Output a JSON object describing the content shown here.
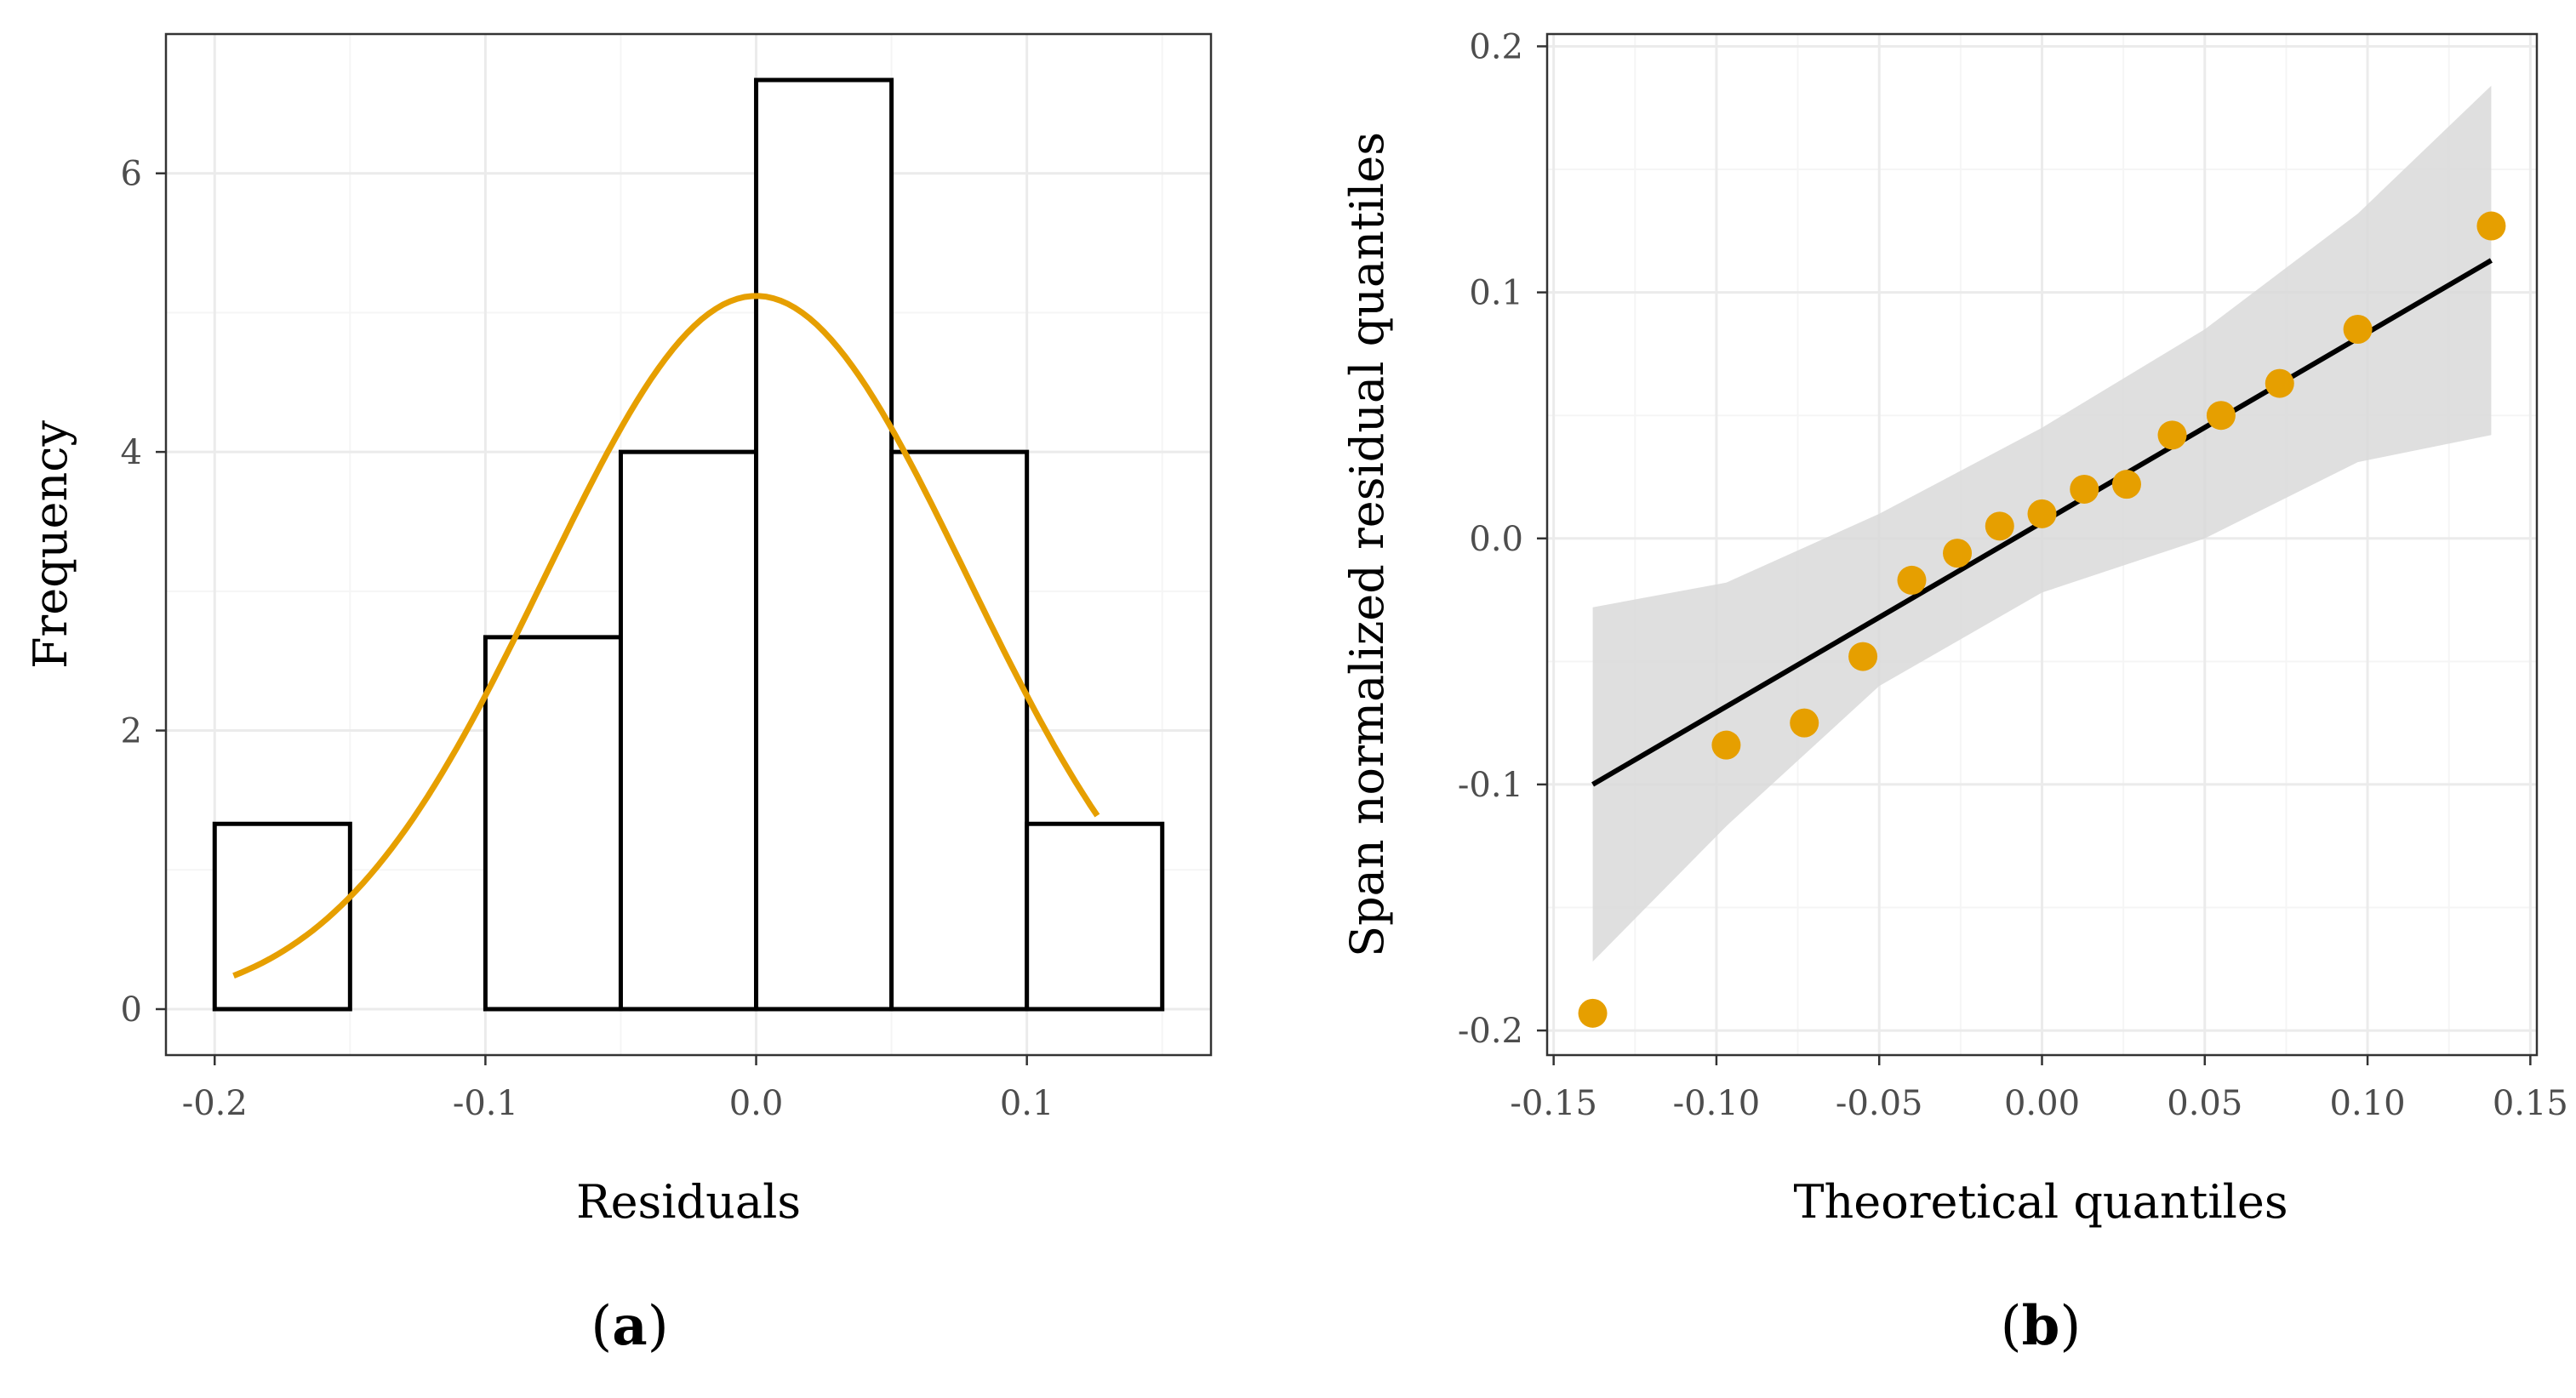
{
  "colors": {
    "accent": "#E69F00",
    "bar_stroke": "#000000",
    "band_fill": "#D9D9D9",
    "grid_major": "#EBEBEB",
    "grid_minor": "#F5F5F5",
    "panel_border": "#333333"
  },
  "chart_data": [
    {
      "id": "a",
      "type": "bar",
      "panel_label": {
        "open": "(",
        "letter": "a",
        "close": ")"
      },
      "xlabel": "Residuals",
      "ylabel": "Frequency",
      "xlim": [
        -0.218,
        0.168
      ],
      "ylim": [
        -0.33,
        7.0
      ],
      "x_ticks": [
        {
          "value": -0.2,
          "label": "-0.2"
        },
        {
          "value": -0.1,
          "label": "-0.1"
        },
        {
          "value": 0.0,
          "label": "0.0"
        },
        {
          "value": 0.1,
          "label": "0.1"
        }
      ],
      "y_ticks": [
        {
          "value": 0,
          "label": "0"
        },
        {
          "value": 2,
          "label": "2"
        },
        {
          "value": 4,
          "label": "4"
        },
        {
          "value": 6,
          "label": "6"
        }
      ],
      "bins": [
        {
          "from": -0.2,
          "to": -0.15,
          "value": 1.33
        },
        {
          "from": -0.15,
          "to": -0.1,
          "value": 0
        },
        {
          "from": -0.1,
          "to": -0.05,
          "value": 2.67
        },
        {
          "from": -0.05,
          "to": 0.0,
          "value": 4.0
        },
        {
          "from": 0.0,
          "to": 0.05,
          "value": 6.67
        },
        {
          "from": 0.05,
          "to": 0.1,
          "value": 4.0
        },
        {
          "from": 0.1,
          "to": 0.15,
          "value": 1.33
        }
      ],
      "density_curve": {
        "mean": 0.0,
        "sd": 0.078,
        "peak": 5.12,
        "x_from": -0.193,
        "x_to": 0.126
      }
    },
    {
      "id": "b",
      "type": "scatter",
      "panel_label": {
        "open": "(",
        "letter": "b",
        "close": ")"
      },
      "xlabel": "Theoretical quantiles",
      "ylabel": "Span normalized residual quantiles",
      "xlim": [
        -0.152,
        0.152
      ],
      "ylim": [
        -0.21,
        0.205
      ],
      "x_ticks": [
        {
          "value": -0.15,
          "label": "-0.15"
        },
        {
          "value": -0.1,
          "label": "-0.10"
        },
        {
          "value": -0.05,
          "label": "-0.05"
        },
        {
          "value": 0.0,
          "label": "0.00"
        },
        {
          "value": 0.05,
          "label": "0.05"
        },
        {
          "value": 0.1,
          "label": "0.10"
        },
        {
          "value": 0.15,
          "label": "0.15"
        }
      ],
      "y_ticks": [
        {
          "value": -0.2,
          "label": "-0.2"
        },
        {
          "value": -0.1,
          "label": "-0.1"
        },
        {
          "value": 0.0,
          "label": "0.0"
        },
        {
          "value": 0.1,
          "label": "0.1"
        },
        {
          "value": 0.2,
          "label": "0.2"
        }
      ],
      "points": [
        {
          "x": -0.138,
          "y": -0.193
        },
        {
          "x": -0.097,
          "y": -0.084
        },
        {
          "x": -0.073,
          "y": -0.075
        },
        {
          "x": -0.055,
          "y": -0.048
        },
        {
          "x": -0.04,
          "y": -0.017
        },
        {
          "x": -0.026,
          "y": -0.006
        },
        {
          "x": -0.013,
          "y": 0.005
        },
        {
          "x": 0.0,
          "y": 0.01
        },
        {
          "x": 0.013,
          "y": 0.02
        },
        {
          "x": 0.026,
          "y": 0.022
        },
        {
          "x": 0.04,
          "y": 0.042
        },
        {
          "x": 0.055,
          "y": 0.05
        },
        {
          "x": 0.073,
          "y": 0.063
        },
        {
          "x": 0.097,
          "y": 0.085
        },
        {
          "x": 0.138,
          "y": 0.127
        }
      ],
      "fit_line": {
        "x": [
          -0.138,
          0.138
        ],
        "y": [
          -0.1,
          0.113
        ]
      },
      "confidence_band": {
        "x": [
          -0.138,
          -0.097,
          -0.05,
          0.0,
          0.05,
          0.097,
          0.138
        ],
        "upper": [
          -0.028,
          -0.018,
          0.01,
          0.045,
          0.085,
          0.132,
          0.184
        ],
        "lower": [
          -0.172,
          -0.117,
          -0.06,
          -0.022,
          0.0,
          0.031,
          0.042
        ]
      }
    }
  ]
}
